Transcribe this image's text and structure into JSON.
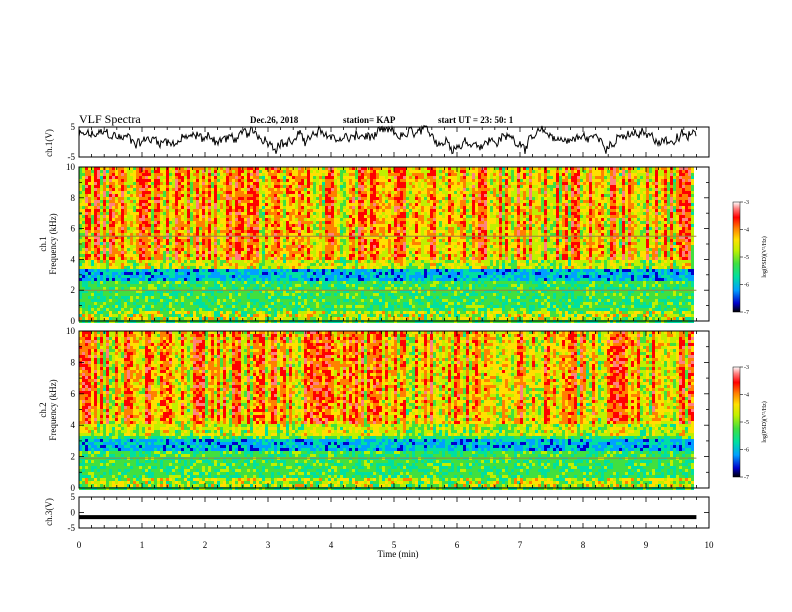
{
  "header": {
    "title": "VLF Spectra",
    "date": "Dec.26, 2018",
    "station": "station= KAP",
    "start_ut": "start  UT =   23: 50: 1"
  },
  "chart_data": [
    {
      "type": "line",
      "panel": "ch1-waveform",
      "ylabel": "ch.1(V)",
      "ylim": [
        -5,
        5
      ],
      "yticks": [
        5,
        -5
      ],
      "xlim": [
        0,
        10
      ],
      "series_color": "#000000",
      "x_end": 9.8
    },
    {
      "type": "heatmap",
      "panel": "ch1-spectrogram",
      "ylabel_line1": "ch.1",
      "ylabel_line2": "Frequency (kHz)",
      "ylim": [
        0,
        10
      ],
      "yticks": [
        0,
        2,
        4,
        6,
        8,
        10
      ],
      "xlim": [
        0,
        10
      ],
      "x_end": 9.8,
      "colorbar": {
        "label": "log(PSD)(V²/Hz)",
        "range": [
          -7,
          -3
        ],
        "ticks": [
          "-3",
          "-4",
          "-5",
          "-6",
          "-7"
        ],
        "colors": [
          "#000000",
          "#0000cc",
          "#00a0ff",
          "#00e0a0",
          "#40e040",
          "#c0f000",
          "#ffe000",
          "#ff8000",
          "#ff0000",
          "#ff8080",
          "#ffffff"
        ]
      },
      "bands": [
        {
          "from_khz": 2.6,
          "to_khz": 3.3,
          "level": "blue"
        },
        {
          "from_khz": 5.5,
          "to_khz": 5.6,
          "level": "line"
        },
        {
          "from_khz": 2.0,
          "to_khz": 2.1,
          "level": "line"
        },
        {
          "from_khz": 0.0,
          "to_khz": 0.6,
          "level": "noise"
        }
      ]
    },
    {
      "type": "heatmap",
      "panel": "ch2-spectrogram",
      "ylabel_line1": "ch.2",
      "ylabel_line2": "Frequency (kHz)",
      "ylim": [
        0,
        10
      ],
      "yticks": [
        0,
        2,
        4,
        6,
        8,
        10
      ],
      "xlim": [
        0,
        10
      ],
      "x_end": 9.8,
      "colorbar": {
        "label": "log(PSD)(V²/Hz)",
        "range": [
          -7,
          -3
        ],
        "ticks": [
          "-3",
          "-4",
          "-5",
          "-6",
          "-7"
        ],
        "colors": [
          "#000000",
          "#0000cc",
          "#00a0ff",
          "#00e0a0",
          "#40e040",
          "#c0f000",
          "#ffe000",
          "#ff8000",
          "#ff0000",
          "#ff8080",
          "#ffffff"
        ]
      },
      "bands": [
        {
          "from_khz": 2.4,
          "to_khz": 3.1,
          "level": "blue"
        },
        {
          "from_khz": 1.9,
          "to_khz": 2.0,
          "level": "line"
        },
        {
          "from_khz": 0.0,
          "to_khz": 0.6,
          "level": "noise"
        }
      ]
    },
    {
      "type": "line",
      "panel": "ch3-waveform",
      "ylabel": "ch.3(V)",
      "ylim": [
        -5,
        5
      ],
      "yticks": [
        5,
        0,
        -5
      ],
      "xlim": [
        0,
        10
      ],
      "constant_value": -1.5,
      "x_end": 9.8,
      "xlabel": "Time  (min)",
      "xticks": [
        0,
        1,
        2,
        3,
        4,
        5,
        6,
        7,
        8,
        9,
        10
      ]
    }
  ]
}
